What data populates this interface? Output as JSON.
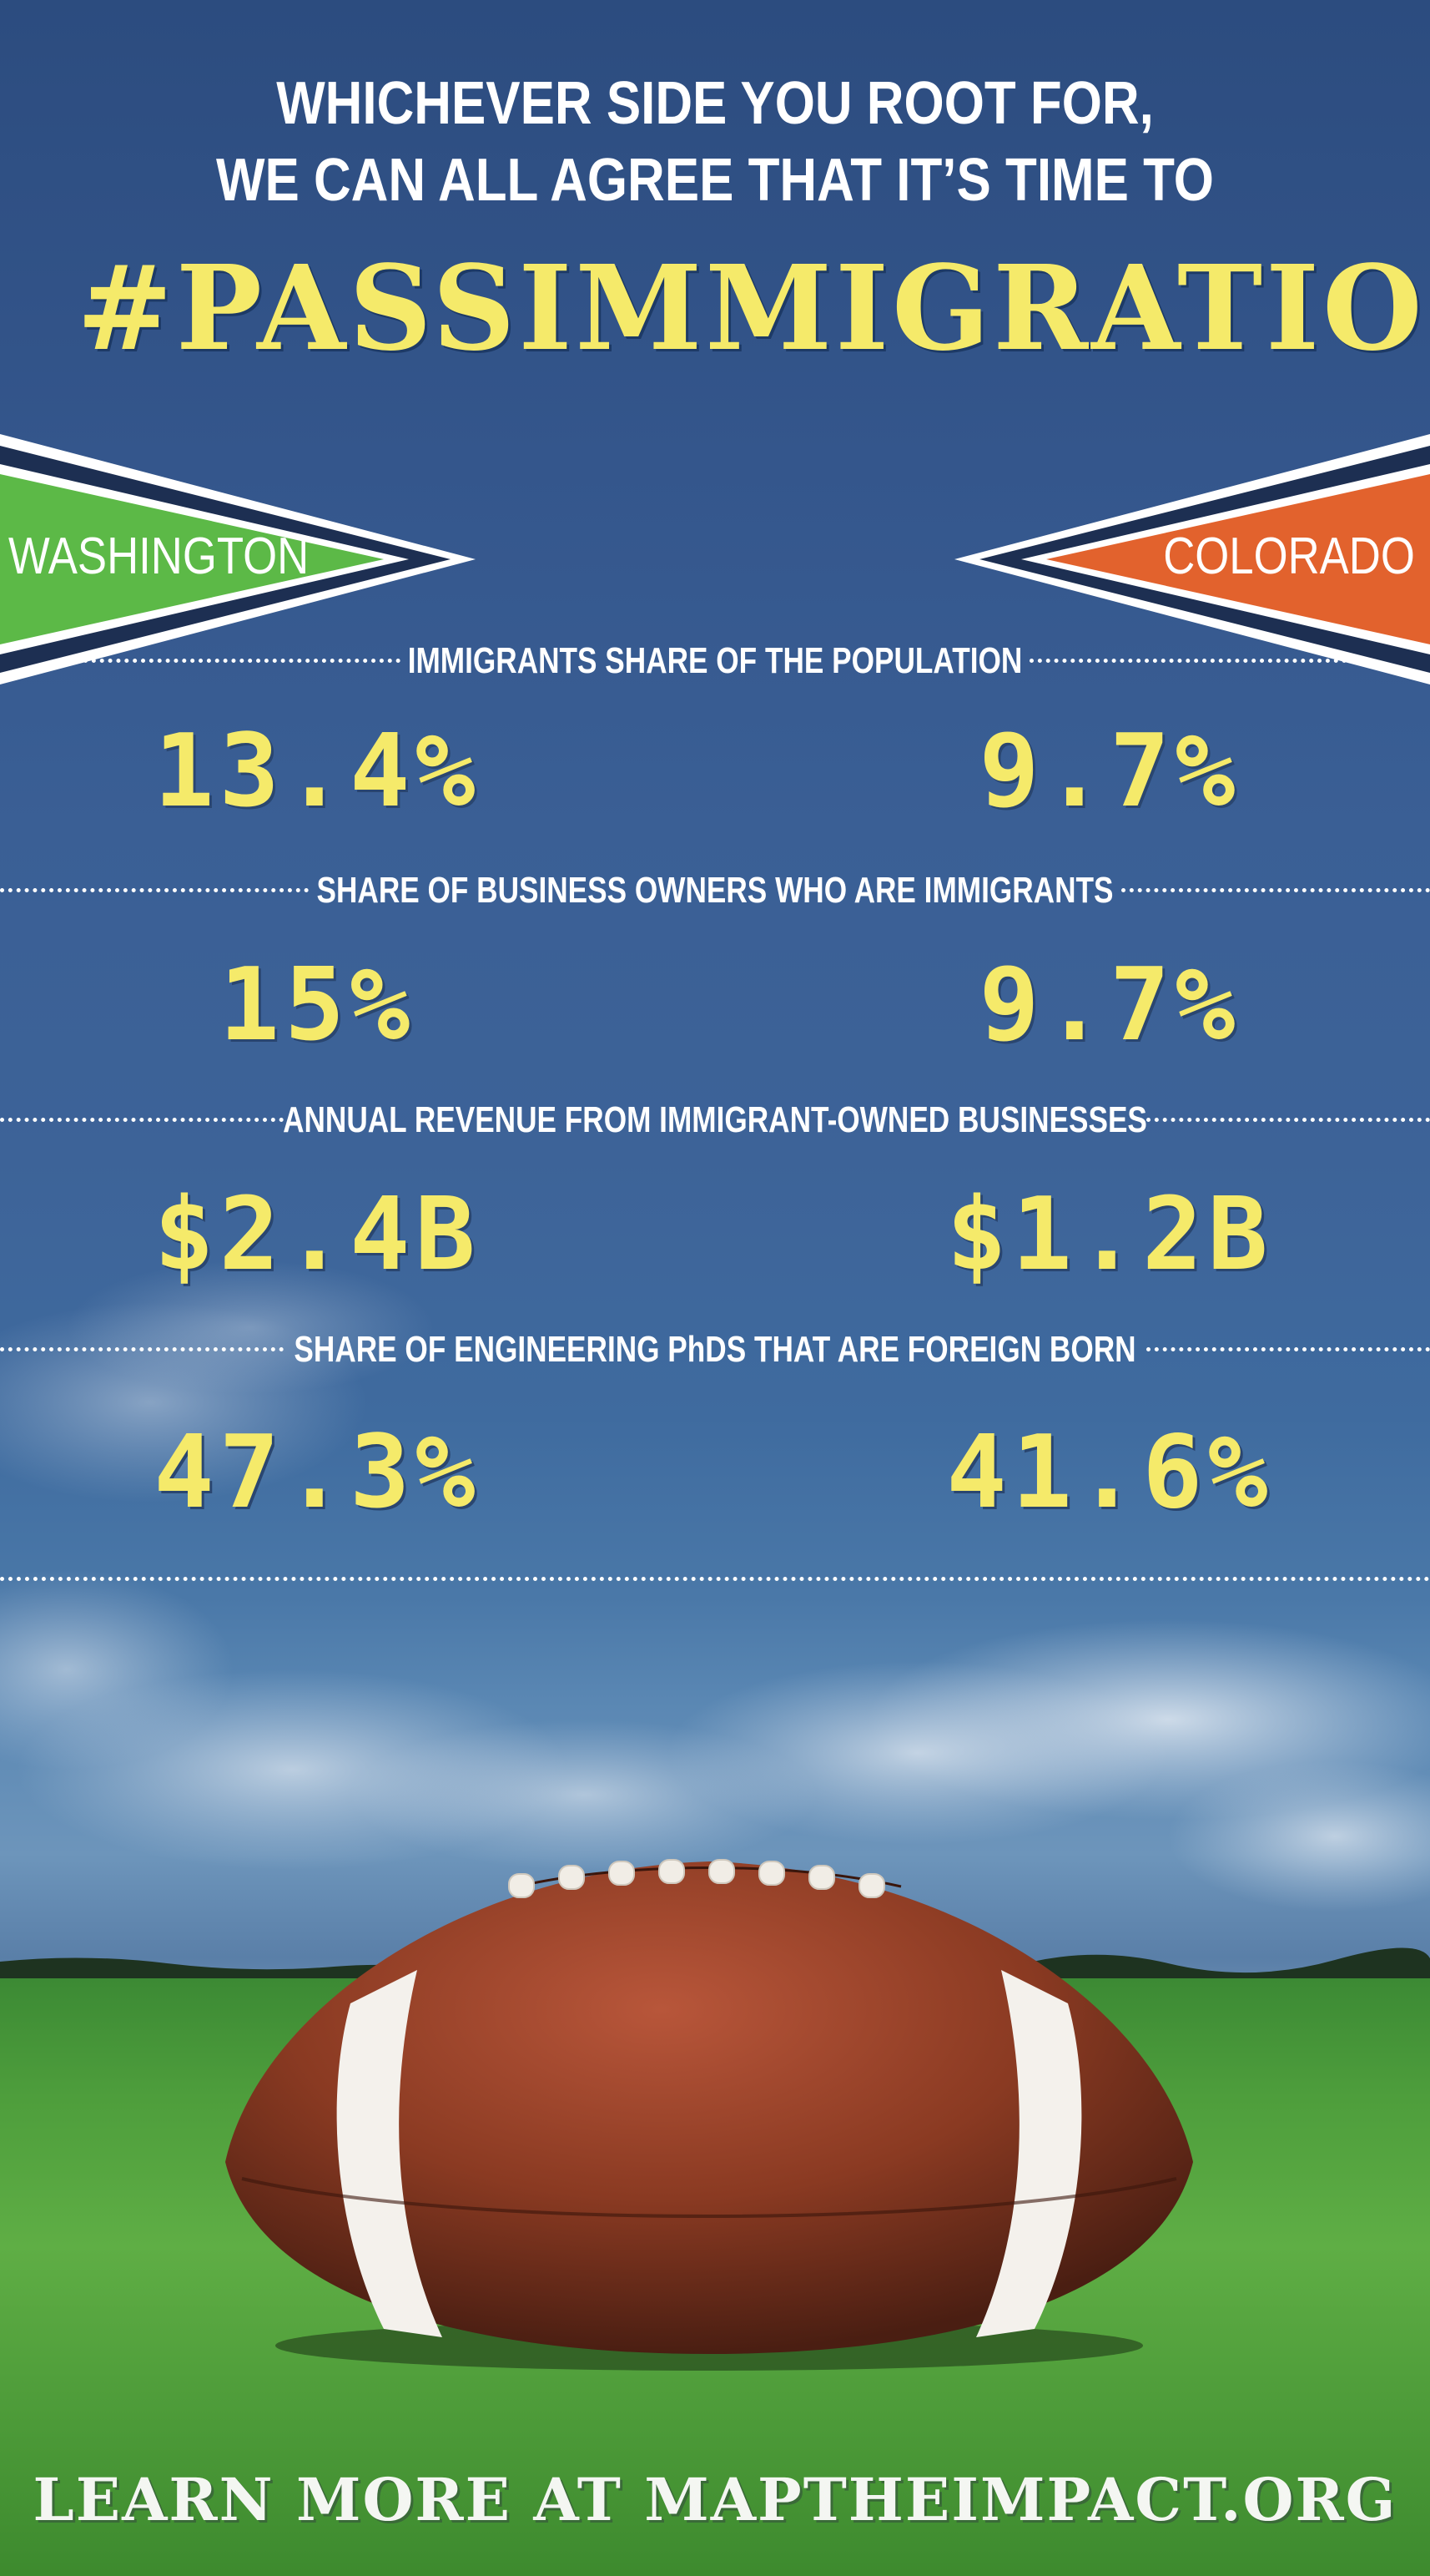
{
  "header": {
    "line1": "WHICHEVER SIDE YOU ROOT FOR,",
    "line2": "WE CAN ALL AGREE THAT IT’S TIME TO",
    "hashtag": "#PASSIMMIGRATION"
  },
  "teams": {
    "left": {
      "name": "WASHINGTON",
      "color": "#5cb947"
    },
    "right": {
      "name": "COLORADO",
      "color": "#e2622d"
    }
  },
  "stats": [
    {
      "label": "IMMIGRANTS SHARE OF THE POPULATION",
      "washington": "13.4%",
      "colorado": "9.7%"
    },
    {
      "label": "SHARE OF BUSINESS OWNERS WHO ARE IMMIGRANTS",
      "washington": "15%",
      "colorado": "9.7%"
    },
    {
      "label": "ANNUAL REVENUE FROM IMMIGRANT-OWNED BUSINESSES",
      "washington": "$2.4B",
      "colorado": "$1.2B"
    },
    {
      "label": "SHARE OF ENGINEERING PhDS THAT ARE FOREIGN BORN",
      "washington": "47.3%",
      "colorado": "41.6%"
    }
  ],
  "footer": {
    "text": "LEARN MORE AT MAPTHEIMPACT.ORG"
  },
  "colors": {
    "accent_yellow": "#f5ea6a",
    "navy": "#1d2f52"
  }
}
